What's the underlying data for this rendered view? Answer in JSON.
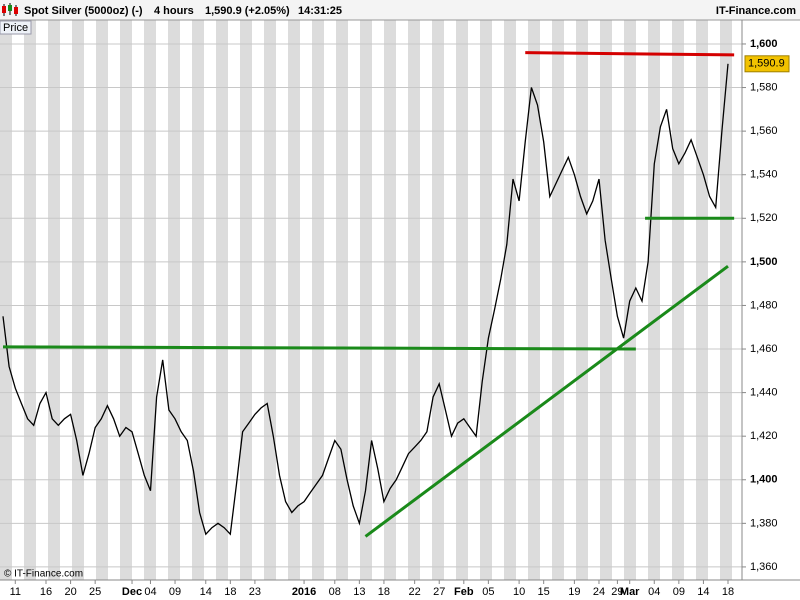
{
  "header": {
    "instrument": "Spot Silver (5000oz) (-)",
    "period": "4 hours",
    "quote": "1,590.9 (+2.05%)",
    "time": "14:31:25",
    "brand": "IT-Finance.com"
  },
  "chart_data": {
    "type": "line",
    "panel_label": "Price",
    "copyright": "© IT-Finance.com",
    "categories": [
      null,
      null,
      "11",
      null,
      null,
      null,
      null,
      "16",
      null,
      null,
      null,
      "20",
      null,
      null,
      null,
      "25",
      null,
      null,
      null,
      null,
      null,
      "Dec",
      null,
      null,
      "04",
      null,
      null,
      null,
      "09",
      null,
      null,
      null,
      null,
      "14",
      null,
      null,
      null,
      "18",
      null,
      null,
      null,
      "23",
      null,
      null,
      null,
      null,
      null,
      null,
      null,
      "2016",
      null,
      null,
      null,
      null,
      "08",
      null,
      null,
      null,
      "13",
      null,
      null,
      null,
      "18",
      null,
      null,
      null,
      null,
      "22",
      null,
      null,
      null,
      "27",
      null,
      null,
      null,
      "Feb",
      null,
      null,
      null,
      "05",
      null,
      null,
      null,
      null,
      "10",
      null,
      null,
      null,
      "15",
      null,
      null,
      null,
      null,
      "19",
      null,
      null,
      null,
      "24",
      null,
      null,
      "29",
      null,
      "Mar",
      null,
      null,
      null,
      "04",
      null,
      null,
      null,
      "09",
      null,
      null,
      null,
      "14",
      null,
      null,
      null,
      "18"
    ],
    "series": [
      {
        "name": "Spot Silver",
        "color": "#000000",
        "values": [
          1475,
          1452,
          1442,
          1435,
          1428,
          1425,
          1435,
          1440,
          1428,
          1425,
          1428,
          1430,
          1418,
          1402,
          1412,
          1424,
          1428,
          1434,
          1428,
          1420,
          1424,
          1422,
          1412,
          1402,
          1395,
          1438,
          1455,
          1432,
          1428,
          1422,
          1418,
          1404,
          1385,
          1375,
          1378,
          1380,
          1378,
          1375,
          1398,
          1422,
          1426,
          1430,
          1433,
          1435,
          1420,
          1402,
          1390,
          1385,
          1388,
          1390,
          1394,
          1398,
          1402,
          1410,
          1418,
          1414,
          1400,
          1388,
          1380,
          1395,
          1418,
          1405,
          1390,
          1396,
          1400,
          1406,
          1412,
          1415,
          1418,
          1422,
          1438,
          1444,
          1432,
          1420,
          1426,
          1428,
          1424,
          1420,
          1445,
          1465,
          1478,
          1492,
          1508,
          1538,
          1528,
          1555,
          1580,
          1572,
          1555,
          1530,
          1536,
          1542,
          1548,
          1540,
          1530,
          1522,
          1528,
          1538,
          1510,
          1492,
          1475,
          1465,
          1482,
          1488,
          1482,
          1500,
          1545,
          1562,
          1570,
          1552,
          1545,
          1550,
          1556,
          1548,
          1540,
          1530,
          1525,
          1560,
          1590.9
        ]
      }
    ],
    "last_price": {
      "value": 1590.9,
      "label": "1,590.9",
      "color": "#f2c200"
    },
    "trendlines": [
      {
        "color": "#d40000",
        "start": [
          85,
          1596
        ],
        "end": [
          119,
          1595
        ]
      },
      {
        "color": "#1a8a1a",
        "start": [
          0,
          1461
        ],
        "end": [
          103,
          1460
        ]
      },
      {
        "color": "#1a8a1a",
        "start": [
          59,
          1374
        ],
        "end": [
          118,
          1498
        ]
      },
      {
        "color": "#1a8a1a",
        "start": [
          104.5,
          1520
        ],
        "end": [
          119,
          1520
        ]
      }
    ],
    "ylim": [
      1354,
      1611
    ],
    "yticks": [
      {
        "value": 1360,
        "label": "1,360"
      },
      {
        "value": 1380,
        "label": "1,380"
      },
      {
        "value": 1400,
        "label": "1,400"
      },
      {
        "value": 1420,
        "label": "1,420"
      },
      {
        "value": 1440,
        "label": "1,440"
      },
      {
        "value": 1460,
        "label": "1,460"
      },
      {
        "value": 1480,
        "label": "1,480"
      },
      {
        "value": 1500,
        "label": "1,500"
      },
      {
        "value": 1520,
        "label": "1,520"
      },
      {
        "value": 1540,
        "label": "1,540"
      },
      {
        "value": 1560,
        "label": "1,560"
      },
      {
        "value": 1580,
        "label": "1,580"
      },
      {
        "value": 1600,
        "label": "1,600"
      }
    ],
    "grid": true
  }
}
